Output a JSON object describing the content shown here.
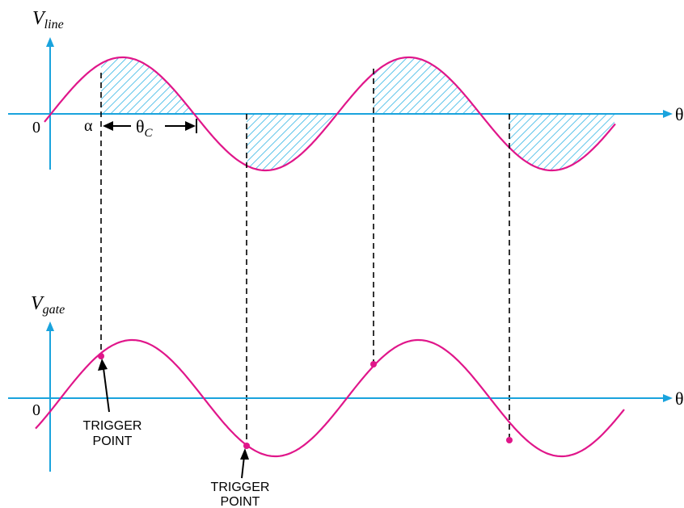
{
  "top_plot": {
    "ylabel_main": "V",
    "ylabel_sub": "line",
    "origin_label": "0",
    "xaxis_label": "θ",
    "alpha_label": "α",
    "conduction_label_main": "θ",
    "conduction_label_sub": "C"
  },
  "bottom_plot": {
    "ylabel_main": "V",
    "ylabel_sub": "gate",
    "origin_label": "0",
    "xaxis_label": "θ",
    "trigger_label_1_line1": "TRIGGER",
    "trigger_label_1_line2": "POINT",
    "trigger_label_2_line1": "TRIGGER",
    "trigger_label_2_line2": "POINT"
  },
  "colors": {
    "axis": "#1aa3dd",
    "waveform": "#e0168a",
    "hatch": "#33b5e5",
    "dashed": "#000000",
    "text": "#000000"
  }
}
